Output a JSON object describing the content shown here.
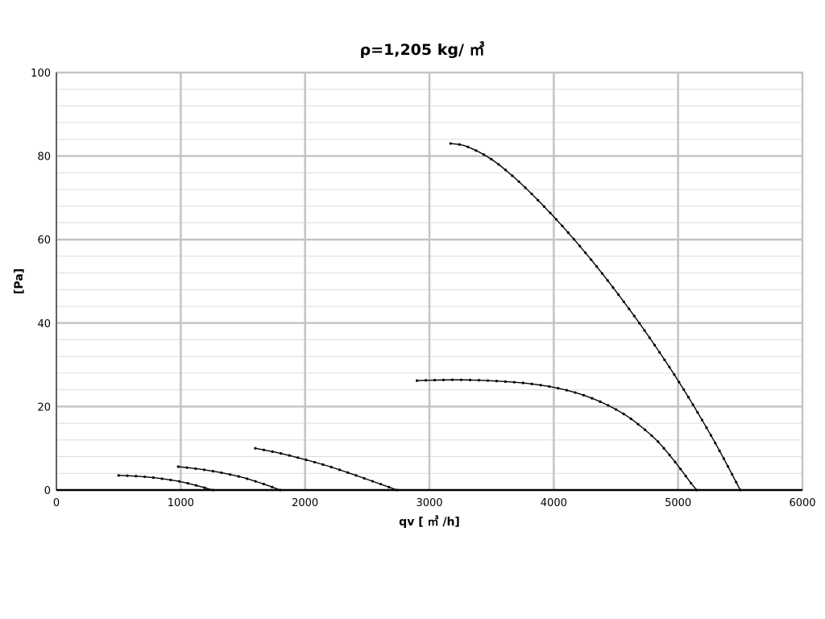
{
  "chart_data": {
    "type": "line",
    "title": "ρ=1,205 kg/ ㎥",
    "xlabel": "qv [ ㎥ /h]",
    "ylabel": "[Pa]",
    "xlim": [
      0,
      6000
    ],
    "ylim": [
      0,
      100
    ],
    "x_ticks": [
      "0",
      "1000",
      "2000",
      "3000",
      "4000",
      "5000",
      "6000"
    ],
    "y_ticks": [
      "0",
      "20",
      "40",
      "60",
      "80",
      "100"
    ],
    "grid": true,
    "series": [
      {
        "x": [
          500,
          600,
          700,
          800,
          900,
          1000,
          1100,
          1200,
          1260
        ],
        "y": [
          3.5,
          3.4,
          3.2,
          2.9,
          2.5,
          2.0,
          1.3,
          0.5,
          0
        ]
      },
      {
        "x": [
          980,
          1100,
          1200,
          1300,
          1400,
          1500,
          1600,
          1700,
          1800
        ],
        "y": [
          5.6,
          5.2,
          4.8,
          4.3,
          3.7,
          3.0,
          2.1,
          1.1,
          0
        ]
      },
      {
        "x": [
          1600,
          1800,
          2000,
          2200,
          2400,
          2600,
          2740
        ],
        "y": [
          10.0,
          8.8,
          7.3,
          5.6,
          3.6,
          1.5,
          0
        ]
      },
      {
        "x": [
          2900,
          3000,
          3200,
          3400,
          3600,
          3800,
          4000,
          4200,
          4400,
          4600,
          4800,
          4900,
          5000,
          5100,
          5150
        ],
        "y": [
          26.2,
          26.3,
          26.4,
          26.3,
          26.0,
          25.5,
          24.6,
          23.1,
          20.8,
          17.5,
          12.7,
          9.5,
          5.8,
          1.8,
          0
        ]
      },
      {
        "x": [
          3170,
          3300,
          3500,
          3700,
          3900,
          4100,
          4300,
          4500,
          4700,
          4900,
          5000,
          5100,
          5200,
          5300,
          5400,
          5500
        ],
        "y": [
          83.0,
          82.3,
          79.2,
          74.4,
          68.6,
          62.2,
          55.2,
          47.6,
          39.5,
          30.8,
          26.2,
          21.4,
          16.4,
          11.2,
          5.7,
          0
        ]
      }
    ]
  }
}
